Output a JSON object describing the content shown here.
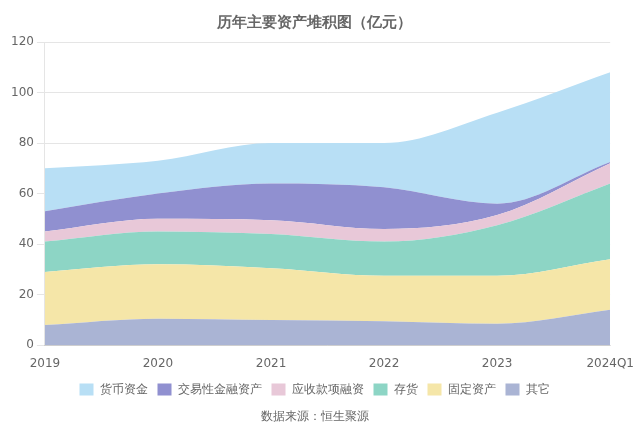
{
  "chart_data": {
    "type": "area",
    "title": "历年主要资产堆积图（亿元）",
    "source": "数据来源：恒生聚源",
    "categories": [
      "2019",
      "2020",
      "2021",
      "2022",
      "2023",
      "2024Q1"
    ],
    "series": [
      {
        "name": "其它",
        "color": "#aab4d4",
        "values": [
          8.0,
          10.5,
          10.0,
          9.5,
          8.5,
          14.0
        ]
      },
      {
        "name": "固定资产",
        "color": "#f5e6a8",
        "values": [
          21.0,
          21.5,
          20.5,
          18.0,
          19.0,
          20.0
        ]
      },
      {
        "name": "存货",
        "color": "#8dd5c5",
        "values": [
          12.0,
          13.0,
          13.5,
          13.5,
          20.0,
          30.0
        ]
      },
      {
        "name": "应收款项融资",
        "color": "#e8c8d8",
        "values": [
          4.0,
          5.0,
          5.5,
          5.0,
          4.0,
          8.0
        ]
      },
      {
        "name": "交易性金融资产",
        "color": "#9090d0",
        "values": [
          8.0,
          10.0,
          14.5,
          16.5,
          4.5,
          0.5
        ]
      },
      {
        "name": "货币资金",
        "color": "#b8dff5",
        "values": [
          17.0,
          13.0,
          16.0,
          17.5,
          36.0,
          35.5
        ]
      }
    ],
    "ylim": [
      0,
      120
    ],
    "yticks": [
      0,
      20,
      40,
      60,
      80,
      100,
      120
    ],
    "stacked": true,
    "grid": true,
    "legend": "bottom"
  }
}
